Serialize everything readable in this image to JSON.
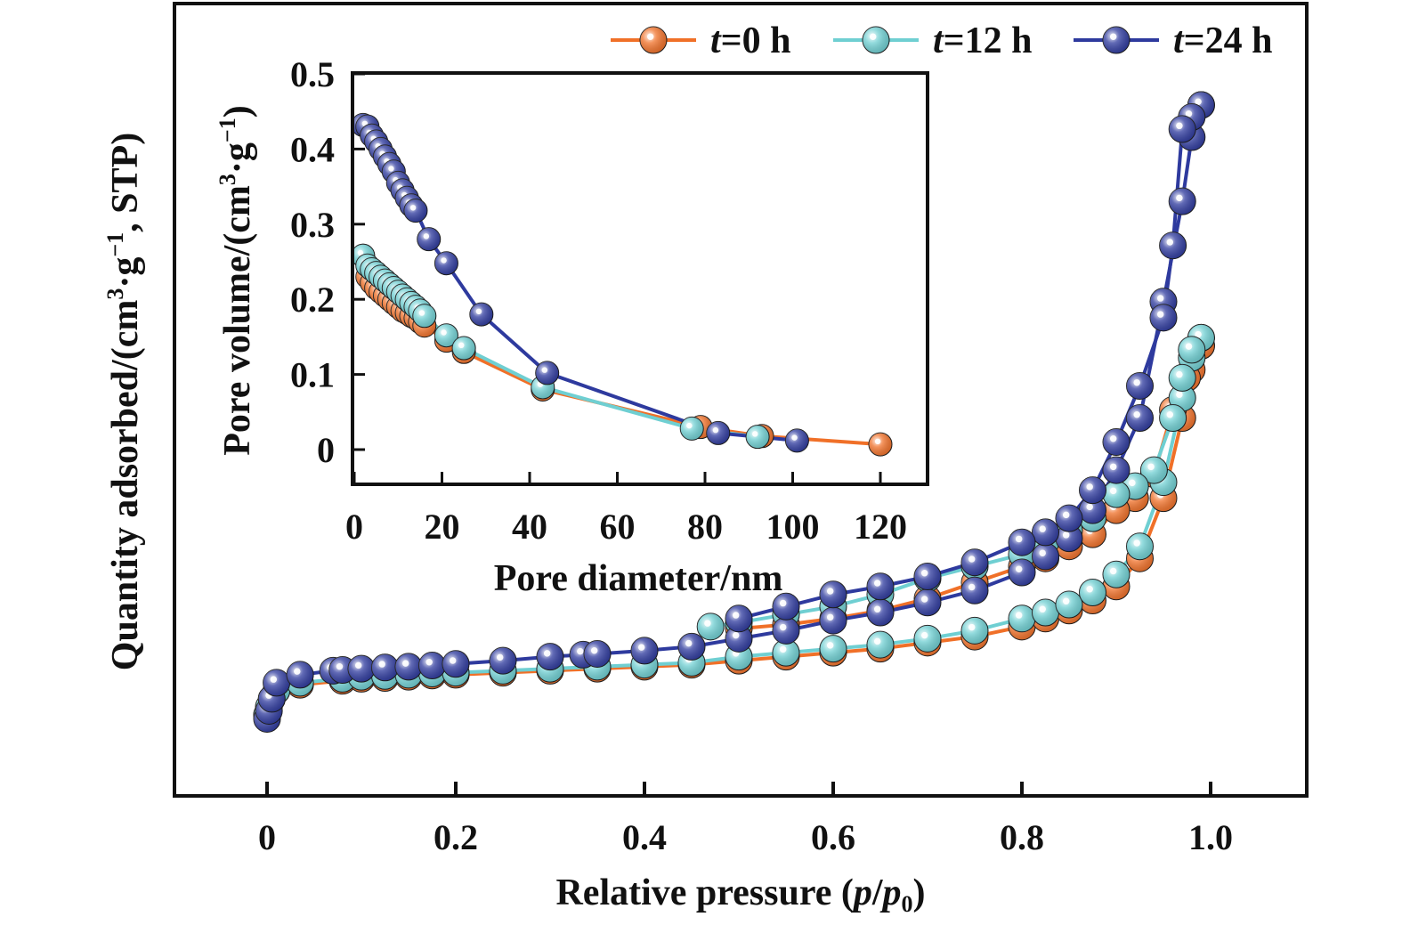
{
  "chart_data": [
    {
      "type": "line",
      "xlabel": "Relative pressure (p/p0)",
      "xlabel_parts": [
        "Relative pressure (",
        "p",
        "/",
        "p",
        "0",
        ")"
      ],
      "ylabel": "Quantity adsorbed/(cm3·g−1, STP)",
      "ylabel_parts": [
        "Quantity adsorbed/(cm",
        "3",
        "·g",
        "−1",
        ", STP)"
      ],
      "xlim": [
        -0.1,
        1.1
      ],
      "ylim": [
        0,
        100
      ],
      "x_ticks": [
        "0",
        "0.2",
        "0.4",
        "0.6",
        "0.8",
        "1.0"
      ],
      "y_ticks_labeled": false,
      "legend_position": "top-right",
      "legend": [
        {
          "name": "t=0 h",
          "italic": "t",
          "rest": "=0 h",
          "color": "#F07028"
        },
        {
          "name": "t=12 h",
          "italic": "t",
          "rest": "=12 h",
          "color": "#6FCFD2"
        },
        {
          "name": "t=24 h",
          "italic": "t",
          "rest": "=24 h",
          "color": "#2E3A9E"
        }
      ],
      "series": [
        {
          "name": "t=0 h",
          "color": "#F07028",
          "adsorption": [
            [
              0.0,
              6
            ],
            [
              0.002,
              8
            ],
            [
              0.005,
              10
            ],
            [
              0.01,
              12
            ],
            [
              0.035,
              13.5
            ],
            [
              0.08,
              14.5
            ],
            [
              0.1,
              15
            ],
            [
              0.125,
              15.2
            ],
            [
              0.15,
              15.5
            ],
            [
              0.175,
              15.8
            ],
            [
              0.2,
              16
            ],
            [
              0.25,
              16.5
            ],
            [
              0.3,
              17
            ],
            [
              0.35,
              17.5
            ],
            [
              0.4,
              18
            ],
            [
              0.45,
              18.5
            ],
            [
              0.5,
              19.5
            ],
            [
              0.55,
              20.5
            ],
            [
              0.6,
              21.5
            ],
            [
              0.65,
              22.5
            ],
            [
              0.7,
              24
            ],
            [
              0.75,
              25.5
            ],
            [
              0.8,
              28
            ],
            [
              0.825,
              30
            ],
            [
              0.85,
              32
            ],
            [
              0.875,
              34.5
            ],
            [
              0.9,
              38
            ],
            [
              0.925,
              45
            ],
            [
              0.95,
              60
            ],
            [
              0.97,
              80
            ],
            [
              0.98,
              92
            ],
            [
              0.99,
              98
            ]
          ],
          "desorption": [
            [
              0.99,
              98
            ],
            [
              0.975,
              90
            ],
            [
              0.96,
              82
            ],
            [
              0.94,
              66
            ],
            [
              0.92,
              60
            ],
            [
              0.9,
              57
            ],
            [
              0.875,
              51
            ],
            [
              0.85,
              48
            ],
            [
              0.825,
              45
            ],
            [
              0.8,
              43
            ],
            [
              0.75,
              39
            ],
            [
              0.7,
              35
            ],
            [
              0.65,
              32
            ],
            [
              0.6,
              30
            ],
            [
              0.55,
              28.5
            ],
            [
              0.5,
              27.5
            ]
          ]
        },
        {
          "name": "t=12 h",
          "color": "#6FCFD2",
          "adsorption": [
            [
              0.0,
              6
            ],
            [
              0.002,
              8
            ],
            [
              0.005,
              10
            ],
            [
              0.01,
              12
            ],
            [
              0.035,
              14
            ],
            [
              0.08,
              15
            ],
            [
              0.1,
              15.5
            ],
            [
              0.125,
              15.7
            ],
            [
              0.15,
              16
            ],
            [
              0.175,
              16.3
            ],
            [
              0.2,
              16.5
            ],
            [
              0.25,
              17
            ],
            [
              0.3,
              17.5
            ],
            [
              0.35,
              18
            ],
            [
              0.4,
              18.5
            ],
            [
              0.45,
              19
            ],
            [
              0.5,
              20.5
            ],
            [
              0.55,
              21.5
            ],
            [
              0.6,
              22.5
            ],
            [
              0.65,
              23.5
            ],
            [
              0.7,
              25
            ],
            [
              0.75,
              27
            ],
            [
              0.8,
              30
            ],
            [
              0.825,
              31.5
            ],
            [
              0.85,
              33.5
            ],
            [
              0.875,
              36.5
            ],
            [
              0.9,
              41
            ],
            [
              0.925,
              48
            ],
            [
              0.95,
              64
            ],
            [
              0.97,
              85
            ],
            [
              0.98,
              95
            ],
            [
              0.99,
              100
            ]
          ],
          "desorption": [
            [
              0.99,
              100
            ],
            [
              0.98,
              97
            ],
            [
              0.97,
              90
            ],
            [
              0.96,
              80
            ],
            [
              0.94,
              67
            ],
            [
              0.92,
              63
            ],
            [
              0.9,
              61
            ],
            [
              0.875,
              55
            ],
            [
              0.85,
              52
            ],
            [
              0.825,
              49
            ],
            [
              0.8,
              46
            ],
            [
              0.75,
              43
            ],
            [
              0.7,
              40
            ],
            [
              0.65,
              36
            ],
            [
              0.6,
              33
            ],
            [
              0.55,
              31
            ],
            [
              0.5,
              29
            ],
            [
              0.47,
              28
            ]
          ]
        },
        {
          "name": "t=24 h",
          "color": "#2E3A9E",
          "adsorption": [
            [
              0.0,
              5
            ],
            [
              0.002,
              7
            ],
            [
              0.005,
              10
            ],
            [
              0.01,
              14
            ],
            [
              0.035,
              16
            ],
            [
              0.07,
              17
            ],
            [
              0.08,
              17.2
            ],
            [
              0.1,
              17.5
            ],
            [
              0.125,
              17.8
            ],
            [
              0.15,
              18
            ],
            [
              0.175,
              18.3
            ],
            [
              0.2,
              18.7
            ],
            [
              0.25,
              19.5
            ],
            [
              0.3,
              20.5
            ],
            [
              0.335,
              21
            ],
            [
              0.35,
              21.2
            ],
            [
              0.4,
              22
            ],
            [
              0.45,
              23
            ],
            [
              0.5,
              25
            ],
            [
              0.55,
              27
            ],
            [
              0.6,
              29.5
            ],
            [
              0.65,
              31.5
            ],
            [
              0.7,
              34
            ],
            [
              0.75,
              37
            ],
            [
              0.8,
              41.5
            ],
            [
              0.825,
              45.5
            ],
            [
              0.85,
              50
            ],
            [
              0.875,
              57
            ],
            [
              0.9,
              67
            ],
            [
              0.925,
              80
            ],
            [
              0.95,
              109
            ],
            [
              0.97,
              134
            ],
            [
              0.98,
              150
            ],
            [
              0.99,
              158
            ]
          ],
          "desorption": [
            [
              0.99,
              158
            ],
            [
              0.98,
              155
            ],
            [
              0.97,
              152
            ],
            [
              0.96,
              123
            ],
            [
              0.95,
              105
            ],
            [
              0.925,
              88
            ],
            [
              0.9,
              74
            ],
            [
              0.875,
              62
            ],
            [
              0.85,
              55
            ],
            [
              0.825,
              51.5
            ],
            [
              0.8,
              49
            ],
            [
              0.75,
              44
            ],
            [
              0.7,
              40.5
            ],
            [
              0.65,
              38
            ],
            [
              0.6,
              36
            ],
            [
              0.55,
              33
            ],
            [
              0.5,
              30
            ]
          ]
        }
      ]
    },
    {
      "type": "line",
      "inset": true,
      "xlabel": "Pore diameter/nm",
      "ylabel": "Pore volume/(cm3·g−1)",
      "ylabel_parts": [
        "Pore volume/(cm",
        "3",
        "·g",
        "−1",
        ")"
      ],
      "xlim": [
        0,
        130
      ],
      "ylim": [
        -0.05,
        0.5
      ],
      "x_ticks": [
        "0",
        "20",
        "40",
        "60",
        "80",
        "100",
        "120"
      ],
      "y_ticks": [
        "0",
        "0.1",
        "0.2",
        "0.3",
        "0.4",
        "0.5"
      ],
      "series": [
        {
          "name": "t=0 h",
          "color": "#F07028",
          "points": [
            [
              2,
              0.258
            ],
            [
              3,
              0.23
            ],
            [
              4,
              0.222
            ],
            [
              5,
              0.215
            ],
            [
              6,
              0.21
            ],
            [
              7,
              0.205
            ],
            [
              8,
              0.2
            ],
            [
              9,
              0.195
            ],
            [
              10,
              0.19
            ],
            [
              11,
              0.185
            ],
            [
              12,
              0.182
            ],
            [
              13,
              0.178
            ],
            [
              14,
              0.175
            ],
            [
              15,
              0.17
            ],
            [
              16,
              0.165
            ],
            [
              21,
              0.145
            ],
            [
              25,
              0.13
            ],
            [
              43,
              0.08
            ],
            [
              79,
              0.03
            ],
            [
              93,
              0.018
            ],
            [
              120,
              0.007
            ]
          ]
        },
        {
          "name": "t=12 h",
          "color": "#6FCFD2",
          "points": [
            [
              2,
              0.258
            ],
            [
              3,
              0.245
            ],
            [
              4,
              0.24
            ],
            [
              5,
              0.235
            ],
            [
              6,
              0.23
            ],
            [
              7,
              0.225
            ],
            [
              8,
              0.22
            ],
            [
              9,
              0.215
            ],
            [
              10,
              0.21
            ],
            [
              11,
              0.205
            ],
            [
              12,
              0.2
            ],
            [
              13,
              0.195
            ],
            [
              14,
              0.19
            ],
            [
              15,
              0.185
            ],
            [
              16,
              0.178
            ],
            [
              21,
              0.152
            ],
            [
              25,
              0.135
            ],
            [
              43,
              0.083
            ],
            [
              77,
              0.028
            ],
            [
              92,
              0.017
            ]
          ]
        },
        {
          "name": "t=24 h",
          "color": "#2E3A9E",
          "points": [
            [
              2,
              0.432
            ],
            [
              3,
              0.43
            ],
            [
              4,
              0.418
            ],
            [
              5,
              0.41
            ],
            [
              6,
              0.4
            ],
            [
              7,
              0.39
            ],
            [
              8,
              0.38
            ],
            [
              9,
              0.37
            ],
            [
              10,
              0.355
            ],
            [
              11,
              0.345
            ],
            [
              12,
              0.335
            ],
            [
              13,
              0.325
            ],
            [
              14,
              0.318
            ],
            [
              17,
              0.28
            ],
            [
              21,
              0.248
            ],
            [
              29,
              0.18
            ],
            [
              44,
              0.102
            ],
            [
              83,
              0.022
            ],
            [
              101,
              0.012
            ]
          ]
        }
      ]
    }
  ]
}
